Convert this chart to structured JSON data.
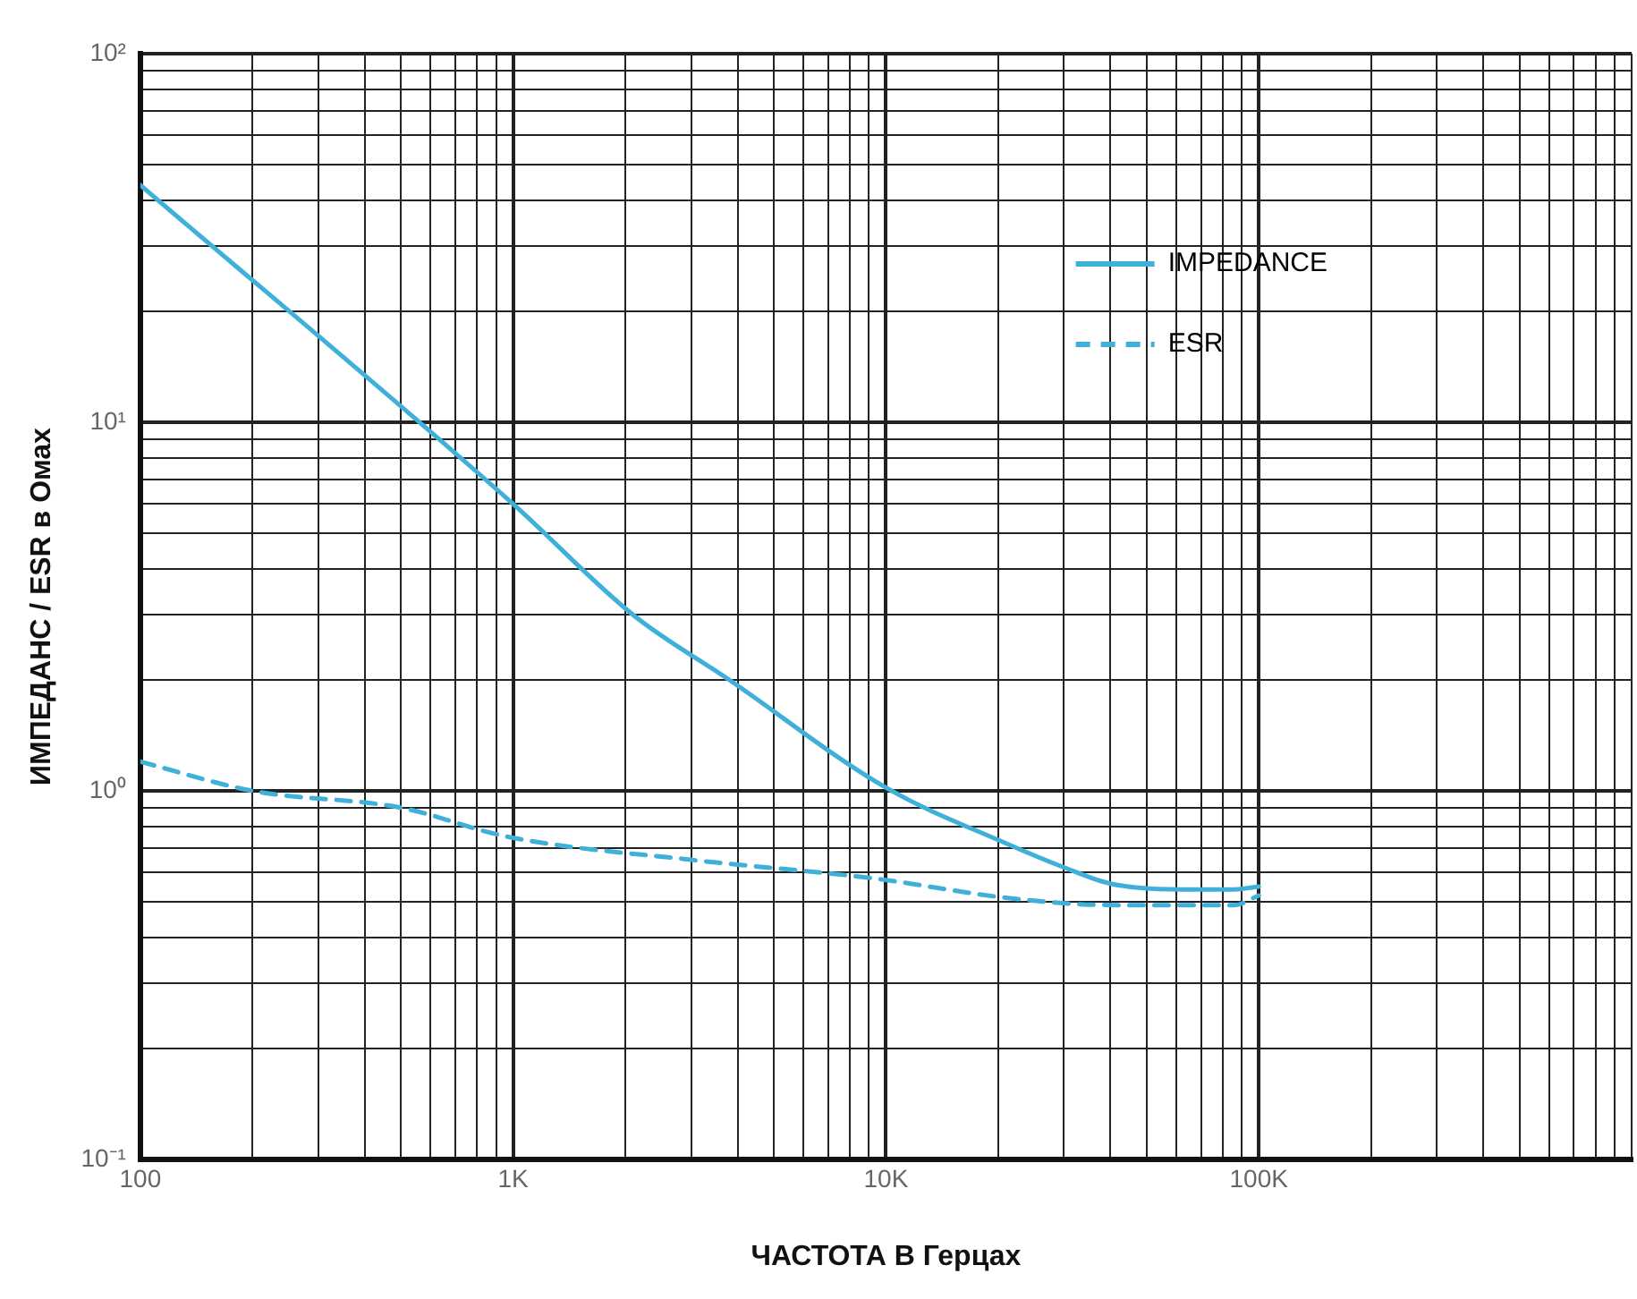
{
  "chart_data": {
    "type": "line",
    "xlabel": "ЧАСТОТА В Герцах",
    "ylabel": "ИМПЕДАНС / ESR в Омах",
    "log": "xy",
    "grid": true,
    "legend": "top right",
    "marker": "none",
    "xlim": [
      100,
      1000000
    ],
    "ylim": [
      0.1,
      100
    ],
    "xticks": [
      {
        "value": 100,
        "label": "100"
      },
      {
        "value": 200,
        "label": null
      },
      {
        "value": 300,
        "label": null
      },
      {
        "value": 400,
        "label": null
      },
      {
        "value": 500,
        "label": null
      },
      {
        "value": 600,
        "label": null
      },
      {
        "value": 700,
        "label": null
      },
      {
        "value": 800,
        "label": null
      },
      {
        "value": 900,
        "label": null
      },
      {
        "value": 1000,
        "label": "1K"
      },
      {
        "value": 2000,
        "label": null
      },
      {
        "value": 3000,
        "label": null
      },
      {
        "value": 4000,
        "label": null
      },
      {
        "value": 5000,
        "label": null
      },
      {
        "value": 6000,
        "label": null
      },
      {
        "value": 7000,
        "label": null
      },
      {
        "value": 8000,
        "label": null
      },
      {
        "value": 9000,
        "label": null
      },
      {
        "value": 10000,
        "label": "10K"
      },
      {
        "value": 20000,
        "label": null
      },
      {
        "value": 30000,
        "label": null
      },
      {
        "value": 40000,
        "label": null
      },
      {
        "value": 50000,
        "label": null
      },
      {
        "value": 60000,
        "label": null
      },
      {
        "value": 70000,
        "label": null
      },
      {
        "value": 80000,
        "label": null
      },
      {
        "value": 90000,
        "label": null
      },
      {
        "value": 100000,
        "label": "100K"
      },
      {
        "value": 200000,
        "label": null
      },
      {
        "value": 300000,
        "label": null
      },
      {
        "value": 400000,
        "label": null
      },
      {
        "value": 500000,
        "label": null
      },
      {
        "value": 600000,
        "label": null
      },
      {
        "value": 700000,
        "label": null
      },
      {
        "value": 800000,
        "label": null
      },
      {
        "value": 900000,
        "label": null
      },
      {
        "value": 1000000,
        "label": null
      }
    ],
    "yticks": [
      {
        "value": 0.1,
        "label": "10⁻¹"
      },
      {
        "value": 0.2,
        "label": null
      },
      {
        "value": 0.3,
        "label": null
      },
      {
        "value": 0.4,
        "label": null
      },
      {
        "value": 0.5,
        "label": null
      },
      {
        "value": 0.6,
        "label": null
      },
      {
        "value": 0.7,
        "label": null
      },
      {
        "value": 0.8,
        "label": null
      },
      {
        "value": 0.9,
        "label": null
      },
      {
        "value": 1,
        "label": "10⁰"
      },
      {
        "value": 2,
        "label": null
      },
      {
        "value": 3,
        "label": null
      },
      {
        "value": 4,
        "label": null
      },
      {
        "value": 5,
        "label": null
      },
      {
        "value": 6,
        "label": null
      },
      {
        "value": 7,
        "label": null
      },
      {
        "value": 8,
        "label": null
      },
      {
        "value": 9,
        "label": null
      },
      {
        "value": 10,
        "label": "10¹"
      },
      {
        "value": 20,
        "label": null
      },
      {
        "value": 30,
        "label": null
      },
      {
        "value": 40,
        "label": null
      },
      {
        "value": 50,
        "label": null
      },
      {
        "value": 60,
        "label": null
      },
      {
        "value": 70,
        "label": null
      },
      {
        "value": 80,
        "label": null
      },
      {
        "value": 90,
        "label": null
      },
      {
        "value": 100,
        "label": "10²"
      }
    ],
    "series": [
      {
        "name": "IMPEDANCE",
        "color": "#3fb0d9",
        "line_style": "solid",
        "x": [
          100,
          1000,
          2100,
          3800,
          10000,
          21000,
          30000,
          40000,
          62000,
          86000,
          100000
        ],
        "values": [
          44,
          6.0,
          3.0,
          2.0,
          1.02,
          0.72,
          0.62,
          0.56,
          0.54,
          0.54,
          0.55
        ]
      },
      {
        "name": "ESR",
        "color": "#3fb0d9",
        "line_style": "dashed",
        "x": [
          100,
          200,
          500,
          970,
          3000,
          9100,
          22000,
          40000,
          86000,
          100000
        ],
        "values": [
          1.2,
          1.0,
          0.9,
          0.75,
          0.65,
          0.58,
          0.51,
          0.49,
          0.49,
          0.52
        ]
      }
    ]
  }
}
